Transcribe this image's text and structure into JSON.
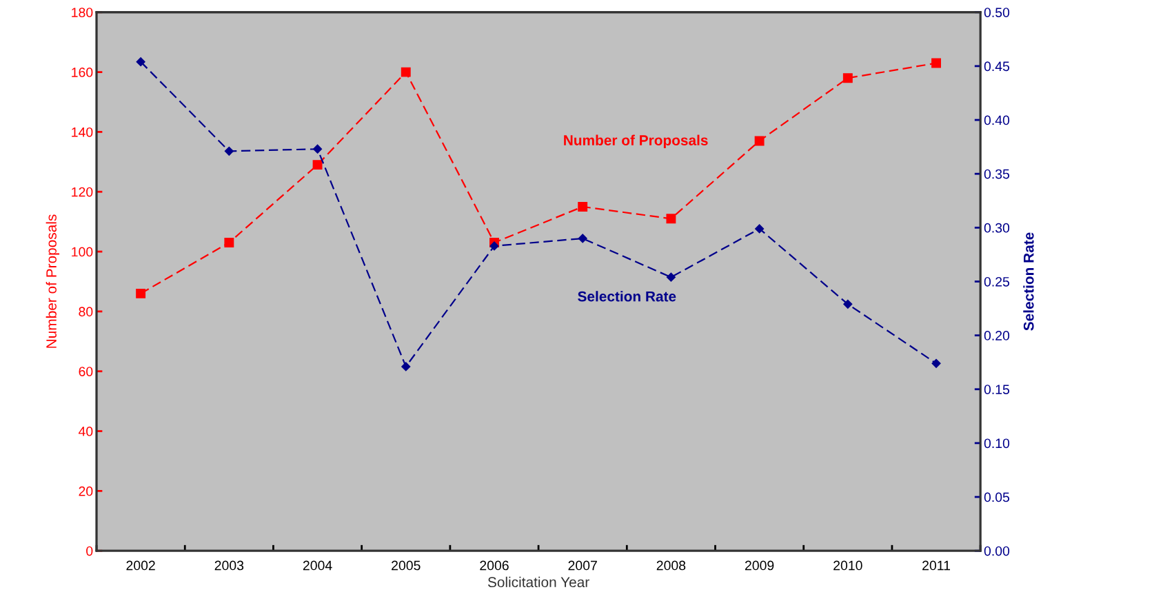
{
  "chart_data": {
    "type": "line",
    "xlabel": "Solicitation Year",
    "ylabel": "Number of Proposals",
    "y2label": "Selection Rate",
    "categories": [
      "2002",
      "2003",
      "2004",
      "2005",
      "2006",
      "2007",
      "2008",
      "2009",
      "2010",
      "2011"
    ],
    "series": [
      {
        "name": "Number of Proposals",
        "color": "#ff0000",
        "marker": "square",
        "values": [
          86,
          103,
          129,
          160,
          103,
          115,
          111,
          137,
          158,
          163
        ]
      },
      {
        "name": "Selection Rate",
        "color": "#00008b",
        "marker": "diamond",
        "axis": "y2",
        "values": [
          0.454,
          0.371,
          0.373,
          0.171,
          0.283,
          0.29,
          0.254,
          0.299,
          0.229,
          0.174
        ]
      }
    ],
    "ylim": [
      0,
      180
    ],
    "yticks": [
      0,
      20,
      40,
      60,
      80,
      100,
      120,
      140,
      160,
      180
    ],
    "y2lim": [
      0,
      0.5
    ],
    "y2ticks": [
      {
        "value": 0,
        "label": "0.00"
      },
      {
        "value": 0.05,
        "label": "0.05"
      },
      {
        "value": 0.1,
        "label": "0.10"
      },
      {
        "value": 0.15,
        "label": "0.15"
      },
      {
        "value": 0.2,
        "label": "0.20"
      },
      {
        "value": 0.25,
        "label": "0.25"
      },
      {
        "value": 0.3,
        "label": "0.30"
      },
      {
        "value": 0.35,
        "label": "0.35"
      },
      {
        "value": 0.4,
        "label": "0.40"
      },
      {
        "value": 0.45,
        "label": "0.45"
      },
      {
        "value": 0.5,
        "label": "0.50"
      }
    ],
    "line_style": "dashed",
    "grid": false,
    "legend": false
  }
}
